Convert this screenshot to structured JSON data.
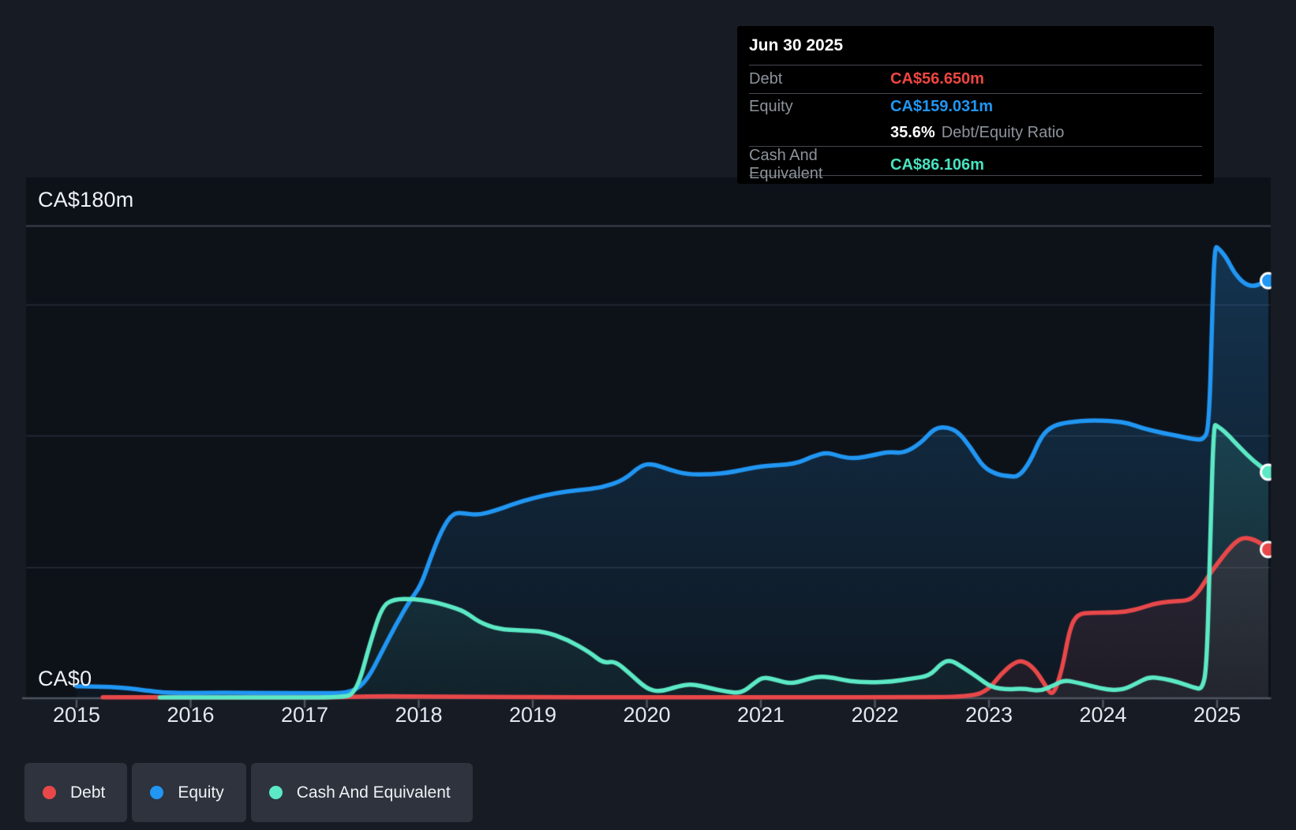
{
  "colors": {
    "page_bg": "#171b24",
    "plot_bg": "#0d1219",
    "grid_top": "#3e4551",
    "grid": "#272e39",
    "axis": "#4d5560",
    "debt": "#e8484a",
    "equity": "#2196f3",
    "cash": "#5ce9c5",
    "tooltip_bg": "#000000",
    "legend_bg": "#2e333d",
    "marker_ring": "#ffffff"
  },
  "tooltip": {
    "title": "Jun 30 2025",
    "debt_label": "Debt",
    "debt_value": "CA$56.650m",
    "equity_label": "Equity",
    "equity_value": "CA$159.031m",
    "ratio_value": "35.6%",
    "ratio_label": "Debt/Equity Ratio",
    "cash_label": "Cash And Equivalent",
    "cash_value": "CA$86.106m"
  },
  "legend": {
    "debt": "Debt",
    "equity": "Equity",
    "cash": "Cash And Equivalent"
  },
  "axis": {
    "y_top_label": "CA$180m",
    "y_zero_label": "CA$0",
    "years": [
      "2015",
      "2016",
      "2017",
      "2018",
      "2019",
      "2020",
      "2021",
      "2022",
      "2023",
      "2024",
      "2025"
    ]
  },
  "chart_data": {
    "type": "area",
    "x_axis": {
      "ticks": [
        2015,
        2016,
        2017,
        2018,
        2019,
        2020,
        2021,
        2022,
        2023,
        2024,
        2025
      ],
      "range": [
        2014.56,
        2025.47
      ]
    },
    "y_axis": {
      "unit": "CA$ millions",
      "range": [
        0,
        180
      ],
      "gridline_values": [
        50,
        100,
        150,
        180
      ],
      "labeled_ticks": {
        "0": "CA$0",
        "180": "CA$180m"
      }
    },
    "legend_position": "bottom-left",
    "series": [
      {
        "name": "Equity",
        "color": "#2196f3",
        "points": [
          [
            2015.0,
            4.6
          ],
          [
            2015.35,
            4.4
          ],
          [
            2015.6,
            3.0
          ],
          [
            2015.8,
            2.0
          ],
          [
            2016.3,
            2.1
          ],
          [
            2016.8,
            2.0
          ],
          [
            2017.2,
            1.9
          ],
          [
            2017.42,
            2.2
          ],
          [
            2017.55,
            7.0
          ],
          [
            2017.68,
            18.0
          ],
          [
            2017.8,
            28.0
          ],
          [
            2017.92,
            37.0
          ],
          [
            2018.02,
            43.0
          ],
          [
            2018.1,
            53.0
          ],
          [
            2018.2,
            64.0
          ],
          [
            2018.3,
            70.8
          ],
          [
            2018.42,
            70.3
          ],
          [
            2018.52,
            69.8
          ],
          [
            2018.65,
            71.2
          ],
          [
            2018.85,
            74.2
          ],
          [
            2019.0,
            76.2
          ],
          [
            2019.2,
            78.2
          ],
          [
            2019.4,
            79.3
          ],
          [
            2019.6,
            80.1
          ],
          [
            2019.8,
            83.1
          ],
          [
            2019.95,
            88.8
          ],
          [
            2020.05,
            89.3
          ],
          [
            2020.2,
            87.0
          ],
          [
            2020.35,
            85.3
          ],
          [
            2020.55,
            85.2
          ],
          [
            2020.75,
            86.1
          ],
          [
            2021.0,
            88.5
          ],
          [
            2021.3,
            89.1
          ],
          [
            2021.45,
            92.1
          ],
          [
            2021.58,
            93.7
          ],
          [
            2021.7,
            92.0
          ],
          [
            2021.82,
            91.2
          ],
          [
            2022.0,
            92.7
          ],
          [
            2022.12,
            93.9
          ],
          [
            2022.25,
            93.3
          ],
          [
            2022.4,
            97.0
          ],
          [
            2022.52,
            102.8
          ],
          [
            2022.63,
            103.3
          ],
          [
            2022.73,
            101.5
          ],
          [
            2022.84,
            95.5
          ],
          [
            2022.95,
            88.0
          ],
          [
            2023.07,
            85.2
          ],
          [
            2023.17,
            84.6
          ],
          [
            2023.26,
            84.3
          ],
          [
            2023.36,
            90.0
          ],
          [
            2023.46,
            100.0
          ],
          [
            2023.56,
            103.8
          ],
          [
            2023.7,
            105.2
          ],
          [
            2023.9,
            105.9
          ],
          [
            2024.1,
            105.5
          ],
          [
            2024.22,
            104.8
          ],
          [
            2024.35,
            102.8
          ],
          [
            2024.5,
            101.2
          ],
          [
            2024.65,
            100.0
          ],
          [
            2024.78,
            98.8
          ],
          [
            2024.88,
            98.3
          ],
          [
            2024.93,
            103.0
          ],
          [
            2024.96,
            150.0
          ],
          [
            2024.98,
            172.0
          ],
          [
            2025.01,
            171.5
          ],
          [
            2025.08,
            168.0
          ],
          [
            2025.15,
            162.0
          ],
          [
            2025.24,
            157.8
          ],
          [
            2025.32,
            156.8
          ],
          [
            2025.4,
            158.2
          ],
          [
            2025.45,
            159.031
          ]
        ]
      },
      {
        "name": "Cash And Equivalent",
        "color": "#5ce9c5",
        "points": [
          [
            2015.73,
            0.3
          ],
          [
            2016.2,
            0.3
          ],
          [
            2016.8,
            0.3
          ],
          [
            2017.3,
            0.3
          ],
          [
            2017.45,
            1.5
          ],
          [
            2017.58,
            22.0
          ],
          [
            2017.68,
            35.0
          ],
          [
            2017.78,
            37.7
          ],
          [
            2017.95,
            37.8
          ],
          [
            2018.1,
            37.0
          ],
          [
            2018.25,
            35.3
          ],
          [
            2018.4,
            33.2
          ],
          [
            2018.53,
            28.9
          ],
          [
            2018.7,
            26.3
          ],
          [
            2018.9,
            25.8
          ],
          [
            2019.1,
            25.4
          ],
          [
            2019.3,
            22.4
          ],
          [
            2019.5,
            17.5
          ],
          [
            2019.62,
            13.3
          ],
          [
            2019.72,
            14.2
          ],
          [
            2019.85,
            9.5
          ],
          [
            2020.0,
            3.5
          ],
          [
            2020.12,
            2.4
          ],
          [
            2020.28,
            4.7
          ],
          [
            2020.4,
            5.4
          ],
          [
            2020.55,
            3.9
          ],
          [
            2020.7,
            2.5
          ],
          [
            2020.83,
            1.9
          ],
          [
            2020.95,
            6.0
          ],
          [
            2021.02,
            8.1
          ],
          [
            2021.14,
            6.9
          ],
          [
            2021.26,
            5.5
          ],
          [
            2021.38,
            6.8
          ],
          [
            2021.5,
            8.4
          ],
          [
            2021.64,
            7.8
          ],
          [
            2021.78,
            6.4
          ],
          [
            2021.95,
            6.0
          ],
          [
            2022.15,
            6.3
          ],
          [
            2022.32,
            7.5
          ],
          [
            2022.48,
            8.5
          ],
          [
            2022.58,
            13.2
          ],
          [
            2022.66,
            14.7
          ],
          [
            2022.78,
            11.5
          ],
          [
            2022.9,
            8.0
          ],
          [
            2023.02,
            4.2
          ],
          [
            2023.16,
            3.3
          ],
          [
            2023.3,
            3.8
          ],
          [
            2023.45,
            2.6
          ],
          [
            2023.58,
            5.2
          ],
          [
            2023.66,
            6.9
          ],
          [
            2023.76,
            6.1
          ],
          [
            2023.9,
            4.6
          ],
          [
            2024.05,
            3.1
          ],
          [
            2024.18,
            3.3
          ],
          [
            2024.3,
            5.8
          ],
          [
            2024.4,
            8.1
          ],
          [
            2024.53,
            7.5
          ],
          [
            2024.67,
            6.0
          ],
          [
            2024.8,
            4.0
          ],
          [
            2024.87,
            3.4
          ],
          [
            2024.91,
            12.0
          ],
          [
            2024.94,
            60.0
          ],
          [
            2024.97,
            104.3
          ],
          [
            2025.0,
            103.8
          ],
          [
            2025.08,
            101.0
          ],
          [
            2025.2,
            95.5
          ],
          [
            2025.32,
            90.3
          ],
          [
            2025.45,
            86.106
          ]
        ]
      },
      {
        "name": "Debt",
        "color": "#e8484a",
        "points": [
          [
            2015.23,
            0.4
          ],
          [
            2015.5,
            0.4
          ],
          [
            2015.73,
            0.3
          ],
          [
            2016.5,
            0.3
          ],
          [
            2017.2,
            0.3
          ],
          [
            2017.6,
            0.8
          ],
          [
            2018.2,
            0.6
          ],
          [
            2019.0,
            0.4
          ],
          [
            2019.8,
            0.4
          ],
          [
            2020.6,
            0.4
          ],
          [
            2021.4,
            0.4
          ],
          [
            2022.2,
            0.4
          ],
          [
            2022.85,
            0.5
          ],
          [
            2023.0,
            3.4
          ],
          [
            2023.1,
            9.0
          ],
          [
            2023.22,
            13.6
          ],
          [
            2023.3,
            14.4
          ],
          [
            2023.4,
            11.3
          ],
          [
            2023.5,
            4.5
          ],
          [
            2023.56,
            0.6
          ],
          [
            2023.64,
            10.5
          ],
          [
            2023.71,
            27.0
          ],
          [
            2023.78,
            32.2
          ],
          [
            2023.9,
            32.6
          ],
          [
            2024.05,
            32.6
          ],
          [
            2024.2,
            32.9
          ],
          [
            2024.34,
            34.4
          ],
          [
            2024.44,
            35.9
          ],
          [
            2024.57,
            36.8
          ],
          [
            2024.71,
            37.1
          ],
          [
            2024.78,
            38.0
          ],
          [
            2024.85,
            41.3
          ],
          [
            2024.92,
            46.3
          ],
          [
            2025.0,
            51.1
          ],
          [
            2025.09,
            56.2
          ],
          [
            2025.17,
            59.8
          ],
          [
            2025.24,
            61.3
          ],
          [
            2025.35,
            60.1
          ],
          [
            2025.45,
            56.65
          ]
        ]
      }
    ],
    "end_markers": [
      {
        "series": "Equity",
        "t": 2025.45,
        "value": 159.031
      },
      {
        "series": "Cash And Equivalent",
        "t": 2025.45,
        "value": 86.106
      },
      {
        "series": "Debt",
        "t": 2025.45,
        "value": 56.65
      }
    ]
  }
}
